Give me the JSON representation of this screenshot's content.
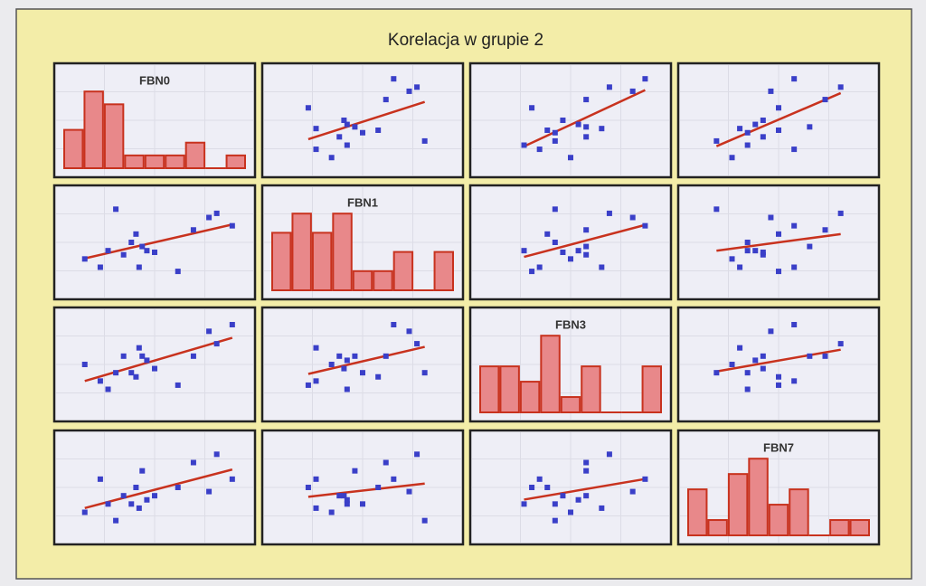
{
  "chart_data": {
    "type": "scatter_matrix",
    "title": "Korelacja w grupie 2",
    "variables": [
      "FBN0",
      "FBN1",
      "FBN3",
      "FBN7"
    ],
    "observations": [
      [
        0.5,
        1.5,
        2,
        2.5,
        3,
        3.5,
        3.8,
        4,
        4.2,
        4.5,
        5,
        6.5,
        7.5,
        8.5,
        9,
        10
      ],
      [
        3,
        2,
        4,
        9,
        3.5,
        5,
        6,
        2,
        4.5,
        4,
        3.8,
        1.5,
        6.5,
        8,
        8.5,
        7
      ],
      [
        5,
        3,
        2,
        4,
        6,
        4,
        3.5,
        7,
        6,
        5.5,
        4.5,
        2.5,
        6,
        9,
        7.5,
        9.8
      ],
      [
        2,
        6,
        3,
        1,
        4,
        3,
        5,
        2.5,
        7,
        3.5,
        4,
        5,
        8,
        4.5,
        9,
        6
      ]
    ],
    "histograms": [
      [
        3,
        6,
        5,
        1,
        1,
        1,
        2,
        0,
        1
      ],
      [
        3,
        4,
        3,
        4,
        1,
        1,
        2,
        0,
        2
      ],
      [
        3,
        3,
        2,
        5,
        1,
        3,
        0,
        0,
        3
      ],
      [
        3,
        1,
        4,
        5,
        2,
        3,
        0,
        1,
        1
      ]
    ],
    "lim": [
      -1,
      11
    ],
    "point_color": "#3a3fc8",
    "line_color": "#c8321e",
    "bar_color": "#e8888a",
    "bar_edge": "#c8321e"
  }
}
